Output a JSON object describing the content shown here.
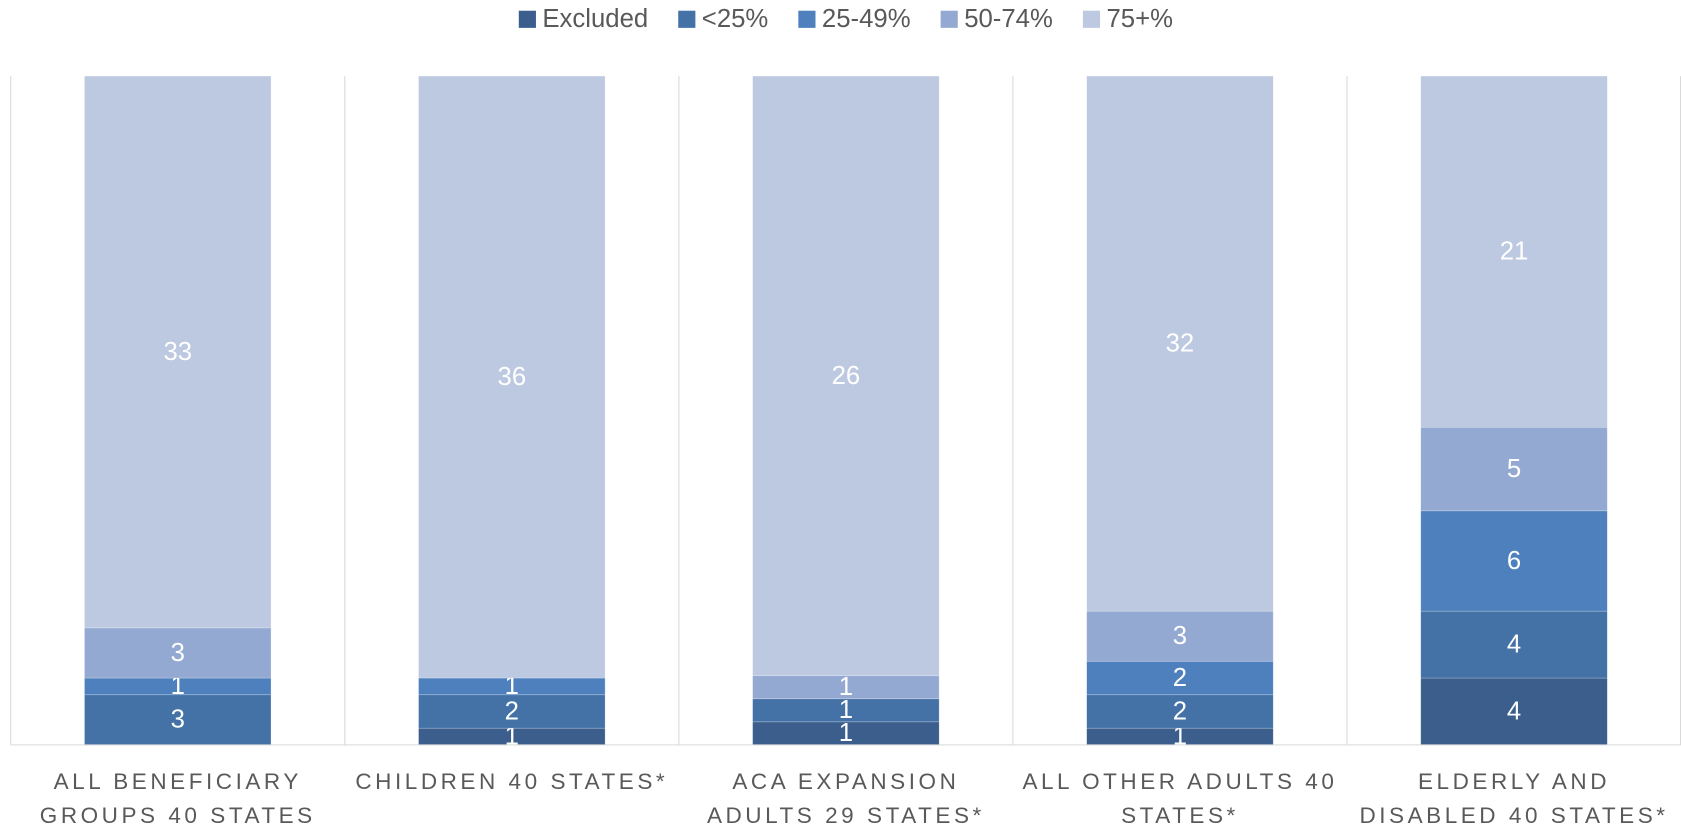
{
  "chart_data": {
    "type": "bar",
    "stacked": "percent",
    "categories": [
      "ALL BENEFICIARY GROUPS 40 STATES",
      "CHILDREN 40 STATES*",
      "ACA EXPANSION ADULTS 29 STATES*",
      "ALL OTHER ADULTS 40 STATES*",
      "ELDERLY AND DISABLED 40 STATES*"
    ],
    "series": [
      {
        "name": "Excluded",
        "color": "#3b5e8c",
        "values": [
          0,
          1,
          1,
          1,
          4
        ]
      },
      {
        "name": "<25%",
        "color": "#4472a7",
        "values": [
          3,
          2,
          1,
          2,
          4
        ]
      },
      {
        "name": "25-49%",
        "color": "#4e80bd",
        "values": [
          1,
          1,
          0,
          2,
          6
        ]
      },
      {
        "name": "50-74%",
        "color": "#94a9d2",
        "values": [
          3,
          0,
          1,
          3,
          5
        ]
      },
      {
        "name": "75+%",
        "color": "#bdc8e1",
        "values": [
          33,
          36,
          26,
          32,
          21
        ]
      }
    ],
    "legend": "top"
  }
}
